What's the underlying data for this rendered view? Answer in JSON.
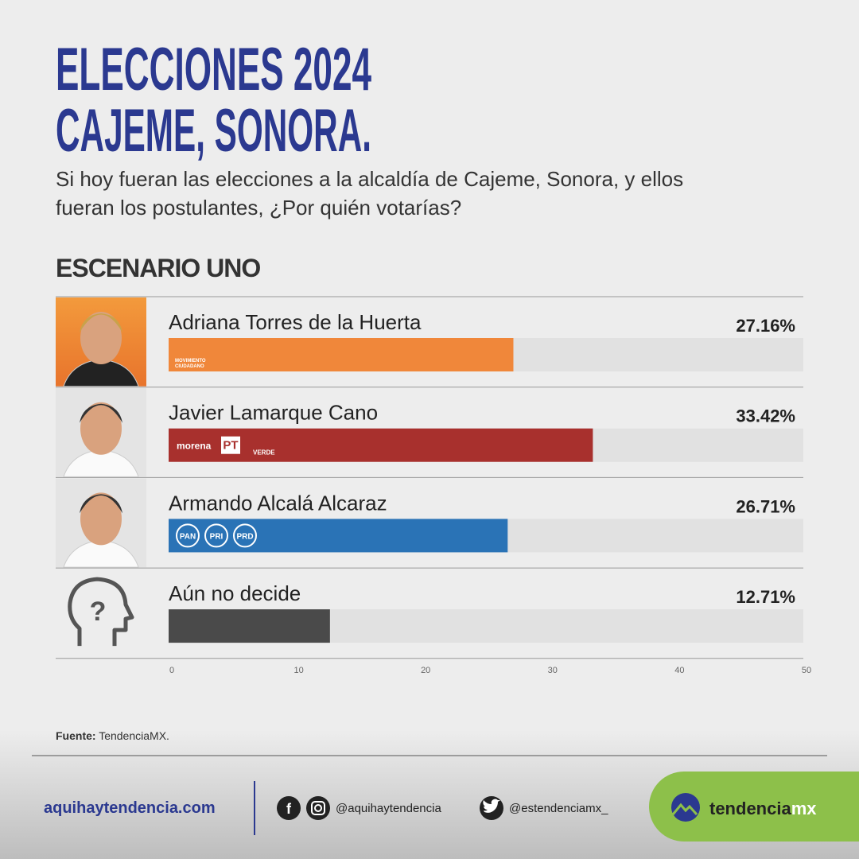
{
  "header": {
    "title_lines": [
      "ELECCIONES 2024",
      "CAJEME, SONORA."
    ],
    "subtitle_lines": [
      "Si hoy fueran las elecciones a la alcaldía de Cajeme, Sonora, y ellos",
      "fueran los postulantes, ¿Por quién votarías?"
    ]
  },
  "chart_data": {
    "type": "bar",
    "orientation": "horizontal",
    "title": "ESCENARIO UNO",
    "categories": [
      "Adriana Torres de la Huerta",
      "Javier Lamarque Cano",
      "Armando Alcalá Alcaraz",
      "Aún no decide"
    ],
    "values": [
      27.16,
      33.42,
      26.71,
      12.71
    ],
    "value_labels": [
      "27.16%",
      "33.42%",
      "26.71%",
      "12.71%"
    ],
    "colors": [
      "#f0873a",
      "#a8302d",
      "#2a73b6",
      "#4a4a4a"
    ],
    "party_labels": [
      [
        "MOVIMIENTO",
        "CIUDADANO"
      ],
      [
        "morena",
        "PT",
        "VERDE"
      ],
      [
        "PAN",
        "PRI",
        "PRD"
      ],
      []
    ],
    "xlim": [
      0,
      50
    ],
    "xticks": [
      0,
      10,
      20,
      30,
      40,
      50
    ]
  },
  "source": {
    "label": "Fuente:",
    "text": "TendenciaMX."
  },
  "footer": {
    "website": "aquihaytendencia.com",
    "facebook_instagram": "@aquihaytendencia",
    "twitter": "@estendenciamx_",
    "brand": [
      "tendencia",
      "mx"
    ]
  }
}
